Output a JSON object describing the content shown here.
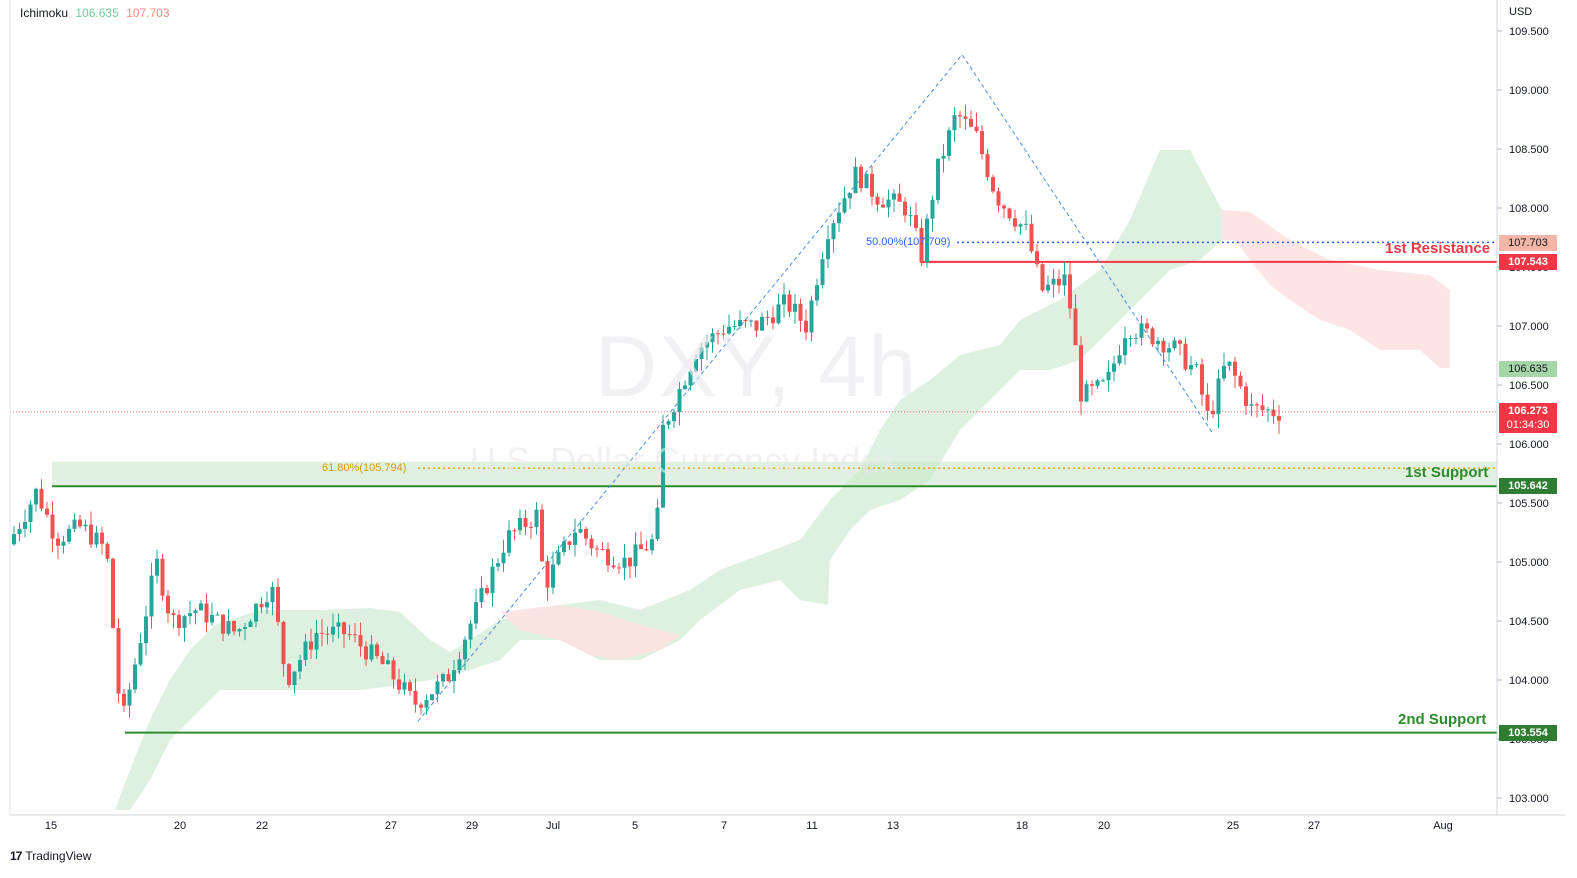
{
  "header": {
    "indicator_name": "Ichimoku",
    "value_1": "106.635",
    "value_2": "107.703",
    "currency": "USD"
  },
  "watermark": {
    "symbol": "DXY, 4h",
    "name": "U.S. Dollar Currency Index"
  },
  "brand": "TradingView",
  "colors": {
    "up": "#26a69a",
    "down": "#ef5350",
    "resistance": "#f23645",
    "support": "#2e8b2e",
    "fib": "#2962ff",
    "fib618": "#e6a500",
    "cloud_bull": "#c8e6c9",
    "cloud_bear": "#ffcdd2"
  },
  "levels": {
    "resistance_1": {
      "label": "1st Resistance",
      "value": "107.543"
    },
    "support_1": {
      "label": "1st Support",
      "value": "105.642"
    },
    "support_2": {
      "label": "2nd Support",
      "value": "103.554"
    }
  },
  "fib": {
    "f50": "50.00%(107.709)",
    "f618": "61.80%(105.794)"
  },
  "badges": {
    "ichimoku_upper": "107.703",
    "ichimoku_lower": "106.635",
    "last_price": "106.273",
    "countdown": "01:34:30"
  },
  "chart_data": {
    "type": "candlestick",
    "symbol": "DXY",
    "timeframe": "4h",
    "currency": "USD",
    "y_ticks": [
      "109.500",
      "109.000",
      "108.500",
      "108.000",
      "107.500",
      "107.000",
      "106.500",
      "106.000",
      "105.500",
      "105.000",
      "104.500",
      "104.000",
      "103.500",
      "103.000"
    ],
    "y_tick_values": [
      109.5,
      109.0,
      108.5,
      108.0,
      107.5,
      107.0,
      106.5,
      106.0,
      105.5,
      105.0,
      104.5,
      104.0,
      103.5,
      103.0
    ],
    "x_ticks": [
      "15",
      "20",
      "22",
      "27",
      "29",
      "Jul",
      "5",
      "7",
      "11",
      "13",
      "18",
      "20",
      "25",
      "27",
      "Aug"
    ],
    "ylim": [
      102.9,
      109.7
    ],
    "horizontal_levels": [
      {
        "name": "1st Resistance",
        "value": 107.543
      },
      {
        "name": "1st Support",
        "value": 105.642
      },
      {
        "name": "2nd Support",
        "value": 103.554
      }
    ],
    "fibonacci": [
      {
        "level": "50.00%",
        "value": 107.709
      },
      {
        "level": "61.80%",
        "value": 105.794
      }
    ],
    "swing_points": [
      {
        "label": "low",
        "value": 103.65
      },
      {
        "label": "high",
        "value": 109.3
      },
      {
        "label": "low",
        "value": 106.1
      }
    ],
    "last_price": 106.273,
    "ichimoku": {
      "value_1": 106.635,
      "value_2": 107.703
    }
  }
}
